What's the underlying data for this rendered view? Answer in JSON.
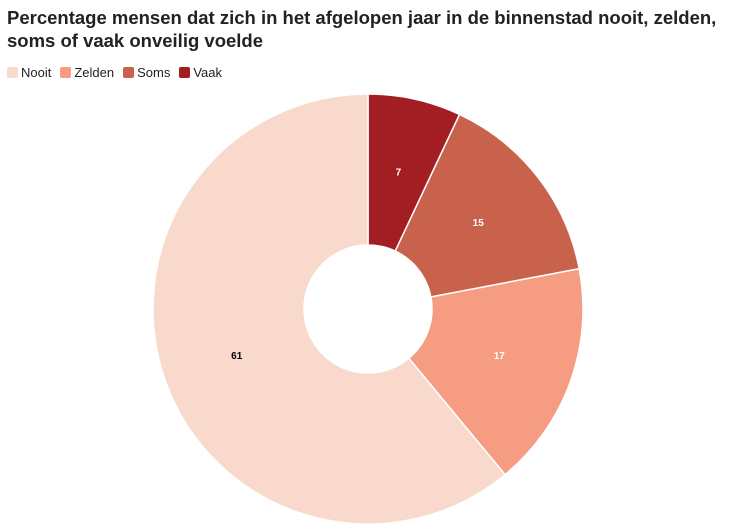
{
  "chart_data": {
    "type": "pie",
    "title": "Percentage mensen dat zich in het afgelopen jaar in de binnenstad nooit, zelden, soms of vaak onveilig voelde",
    "categories": [
      "Nooit",
      "Zelden",
      "Soms",
      "Vaak"
    ],
    "values": [
      61,
      17,
      15,
      7
    ],
    "colors": [
      "#f9d9cc",
      "#f59c82",
      "#c8624d",
      "#a21e22"
    ],
    "label_colors": [
      "#000000",
      "#ffffff",
      "#ffffff",
      "#ffffff"
    ],
    "donut": true,
    "legend_position": "top-left",
    "slice_order_clockwise_from_top": [
      "Vaak",
      "Soms",
      "Zelden",
      "Nooit"
    ]
  }
}
